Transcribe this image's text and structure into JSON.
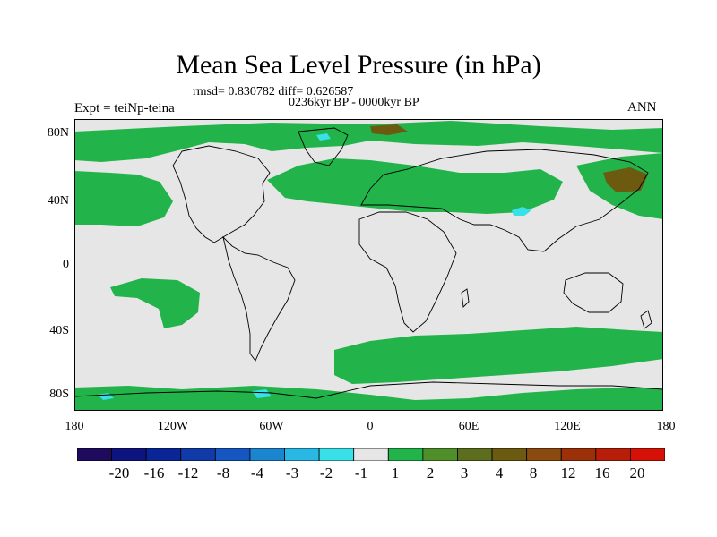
{
  "title": "Mean Sea Level Pressure (in hPa)",
  "stats": "rmsd= 0.830782 diff= 0.626587",
  "period": "0236kyr BP - 0000kyr BP",
  "experiment": "Expt = teiNp-teina",
  "season": "ANN",
  "lat_labels": [
    "80N",
    "40N",
    "0",
    "40S",
    "80S"
  ],
  "lon_labels": [
    "180",
    "120W",
    "60W",
    "0",
    "60E",
    "120E",
    "180"
  ],
  "colorbar": {
    "colors": [
      "#1e0b5e",
      "#0d1480",
      "#0a2596",
      "#0f3aa8",
      "#1656c0",
      "#1b86cf",
      "#28b8e3",
      "#38e0e8",
      "#e6e6e6",
      "#22b44a",
      "#4f8f2a",
      "#5c6e1e",
      "#6b5a10",
      "#8a4a10",
      "#9c3008",
      "#b71e0a",
      "#d61208"
    ],
    "labels": [
      "-20",
      "-16",
      "-12",
      "-8",
      "-4",
      "-3",
      "-2",
      "-1",
      "1",
      "2",
      "3",
      "4",
      "8",
      "12",
      "16",
      "20"
    ]
  },
  "map_colors": {
    "background": "#e6e6e6",
    "positive_small": "#22b44a",
    "positive_mid": "#6b5a10",
    "negative_small": "#38e0e8",
    "coast": "#000000"
  }
}
